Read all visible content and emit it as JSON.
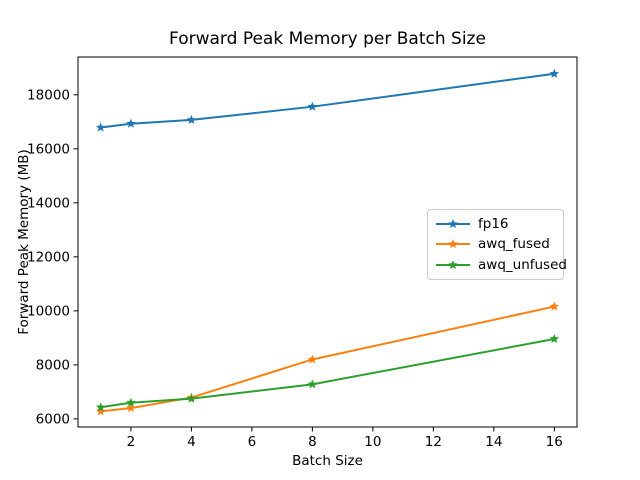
{
  "figure": {
    "background": "#ffffff",
    "axis_color": "#000000",
    "text_color": "#000000",
    "legend_border_color": "#cccccc"
  },
  "chart_data": {
    "type": "line",
    "title": "Forward Peak Memory per Batch Size",
    "xlabel": "Batch Size",
    "ylabel": "Forward Peak Memory (MB)",
    "x": [
      1,
      2,
      4,
      8,
      16
    ],
    "series": [
      {
        "name": "fp16",
        "color": "#1f77b4",
        "marker": "star",
        "values": [
          16790,
          16930,
          17070,
          17560,
          18780
        ]
      },
      {
        "name": "awq_fused",
        "color": "#ff7f0e",
        "marker": "star",
        "values": [
          6280,
          6400,
          6790,
          8200,
          10160
        ]
      },
      {
        "name": "awq_unfused",
        "color": "#2ca02c",
        "marker": "star",
        "values": [
          6430,
          6600,
          6750,
          7280,
          8960
        ]
      }
    ],
    "xlim": [
      0.25,
      16.75
    ],
    "ylim": [
      5700,
      19400
    ],
    "x_ticks": [
      2,
      4,
      6,
      8,
      10,
      12,
      14,
      16
    ],
    "y_ticks": [
      6000,
      8000,
      10000,
      12000,
      14000,
      16000,
      18000
    ],
    "grid": false,
    "legend": {
      "position": "center-right"
    }
  }
}
